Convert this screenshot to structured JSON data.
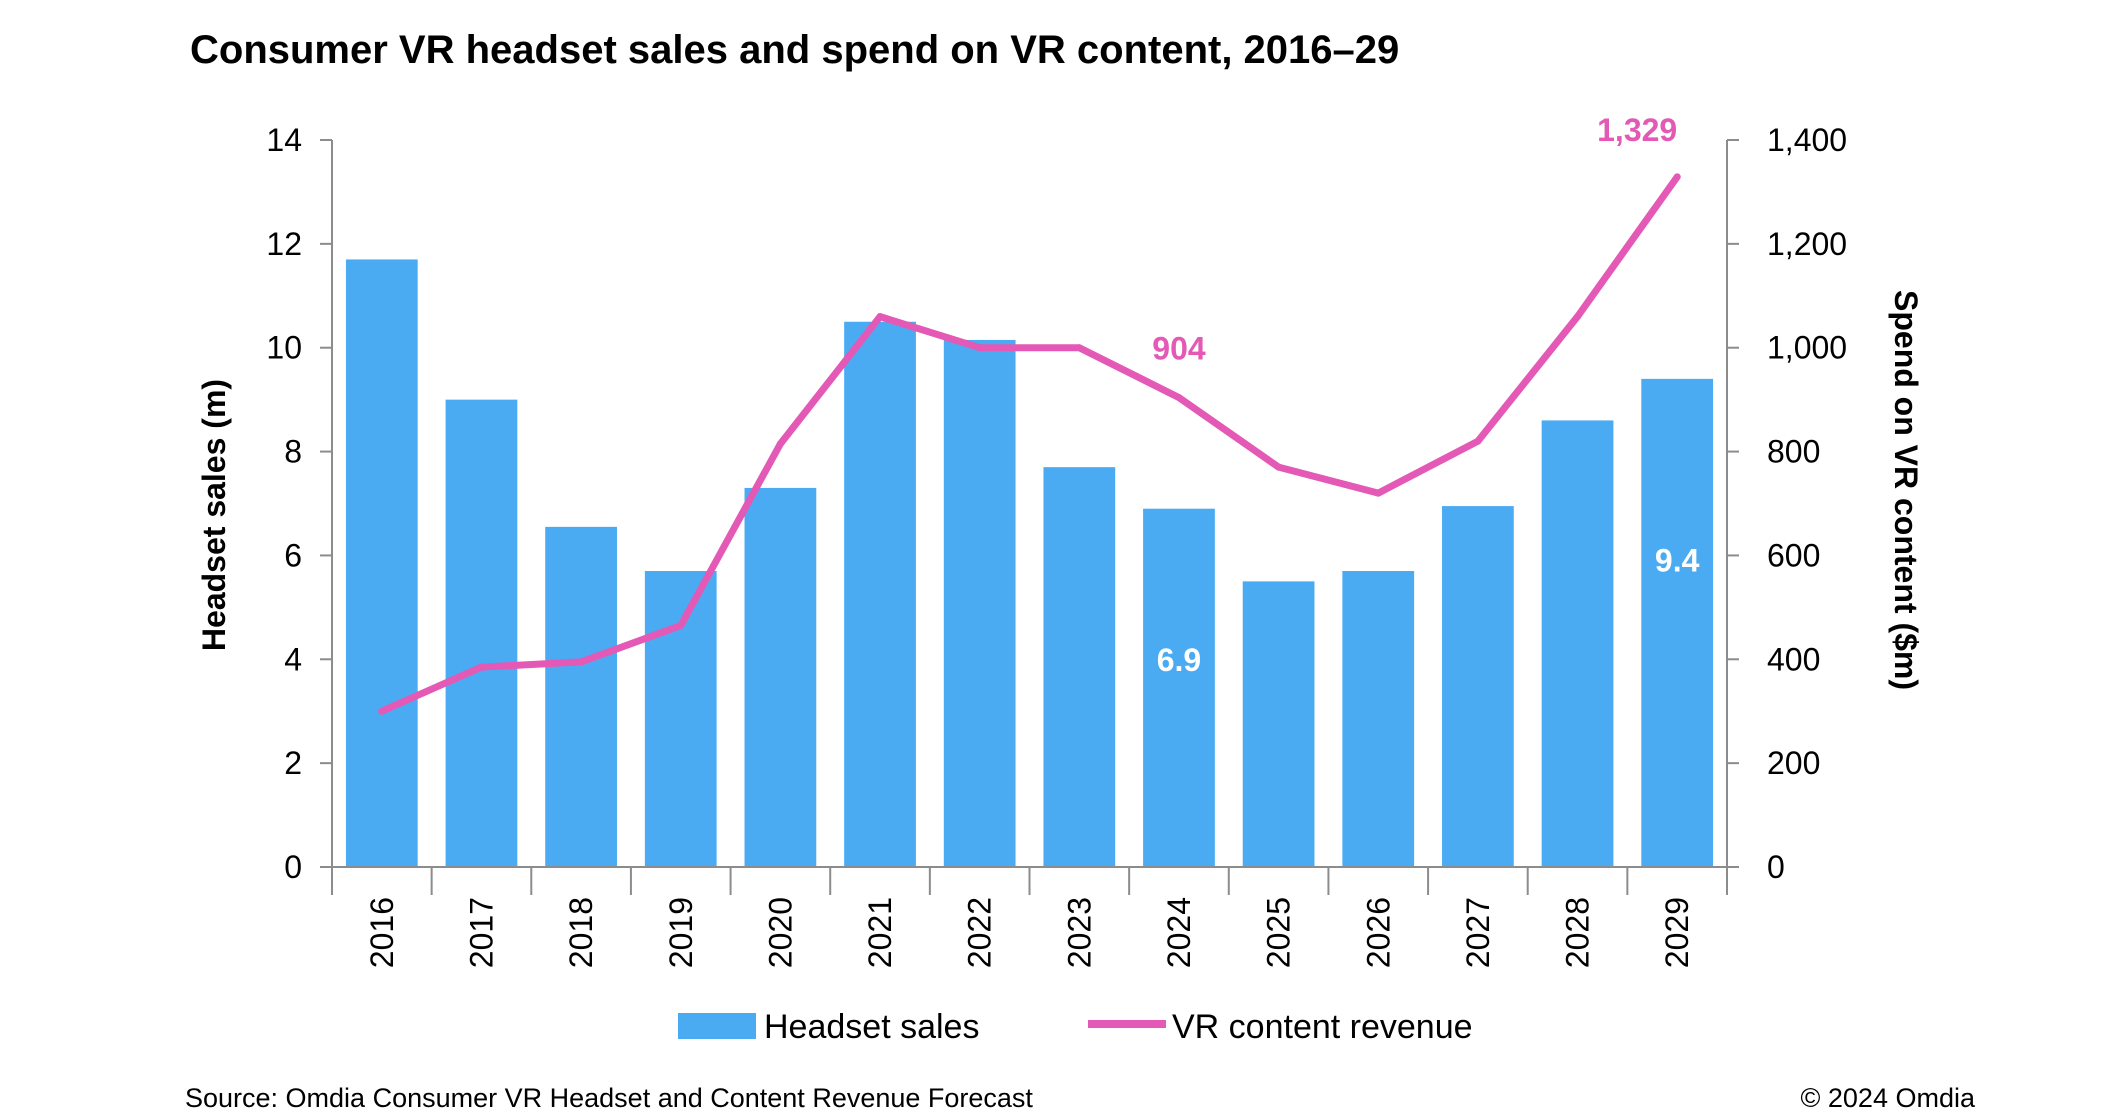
{
  "title": "Consumer VR headset sales and spend on VR content, 2016–29",
  "footer": {
    "source": "Source: Omdia Consumer VR Headset and Content Revenue Forecast",
    "copyright": "© 2024 Omdia"
  },
  "colors": {
    "bar": "#4AABF3",
    "line": "#E359B5",
    "axis": "#8c8c8c"
  },
  "chart_data": {
    "type": "bar",
    "categories": [
      "2016",
      "2017",
      "2018",
      "2019",
      "2020",
      "2021",
      "2022",
      "2023",
      "2024",
      "2025",
      "2026",
      "2027",
      "2028",
      "2029"
    ],
    "series": [
      {
        "name": "Headset sales",
        "type": "bar",
        "axis": "left",
        "values": [
          11.7,
          9.0,
          6.55,
          5.7,
          7.3,
          10.5,
          10.15,
          7.7,
          6.9,
          5.5,
          5.7,
          6.95,
          8.6,
          9.4
        ]
      },
      {
        "name": "VR content revenue",
        "type": "line",
        "axis": "right",
        "values": [
          300,
          385,
          395,
          465,
          815,
          1060,
          1000,
          1000,
          904,
          770,
          720,
          820,
          1060,
          1329
        ]
      }
    ],
    "ylabel": "Headset sales (m)",
    "y2label": "Spend on VR content ($m)",
    "ylim": [
      0,
      14
    ],
    "yticks": [
      "0",
      "2",
      "4",
      "6",
      "8",
      "10",
      "12",
      "14"
    ],
    "y2lim": [
      0,
      1400
    ],
    "y2ticks": [
      "0",
      "200",
      "400",
      "600",
      "800",
      "1,000",
      "1,200",
      "1,400"
    ],
    "bar_labels": [
      {
        "index": 8,
        "text": "6.9"
      },
      {
        "index": 13,
        "text": "9.4"
      }
    ],
    "line_labels": [
      {
        "index": 8,
        "text": "904"
      },
      {
        "index": 13,
        "text": "1,329"
      }
    ],
    "legend": {
      "position": "bottom"
    },
    "grid": false
  }
}
